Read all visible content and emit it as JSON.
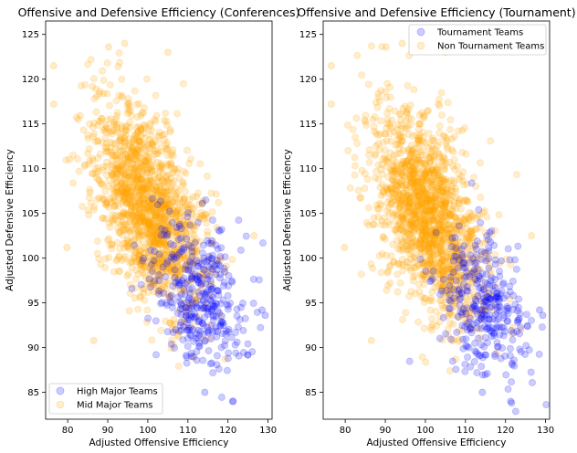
{
  "chart_data": [
    {
      "type": "scatter",
      "title": "Offensive and Defensive Efficiency (Conferences)",
      "xlabel": "Adjusted Offensive Efficiency",
      "ylabel": "Adjusted Defensive Efficiency",
      "xlim": [
        74.5,
        131.0
      ],
      "ylim": [
        82.0,
        126.5
      ],
      "xticks": [
        80,
        90,
        100,
        110,
        120,
        130
      ],
      "yticks": [
        85,
        90,
        95,
        100,
        105,
        110,
        115,
        120,
        125
      ],
      "grid": false,
      "legend": "lower-left",
      "series": [
        {
          "name": "High Major Teams",
          "color": "#0000ff",
          "alpha": 0.2,
          "summary": {
            "count": 380,
            "x_mean": 112.5,
            "x_sd": 6.0,
            "y_mean": 96.0,
            "y_sd": 4.3,
            "correlation": -0.35
          }
        },
        {
          "name": "Mid Major Teams",
          "color": "#ffa500",
          "alpha": 0.2,
          "summary": {
            "count": 1500,
            "x_mean": 100.0,
            "x_sd": 6.8,
            "y_mean": 105.5,
            "y_sd": 5.6,
            "correlation": -0.5
          }
        }
      ],
      "notable_points": [
        {
          "x": 76.5,
          "y": 121.5
        },
        {
          "x": 76.5,
          "y": 117.2
        },
        {
          "x": 94.2,
          "y": 124.0
        },
        {
          "x": 90.2,
          "y": 123.6
        },
        {
          "x": 105.0,
          "y": 123.0
        },
        {
          "x": 79.8,
          "y": 101.2
        },
        {
          "x": 86.5,
          "y": 90.8
        },
        {
          "x": 128.5,
          "y": 94.2
        },
        {
          "x": 129.3,
          "y": 93.6
        },
        {
          "x": 121.3,
          "y": 84.0
        },
        {
          "x": 114.2,
          "y": 85.0
        },
        {
          "x": 126.5,
          "y": 102.5
        }
      ]
    },
    {
      "type": "scatter",
      "title": "Offensive and Defensive Efficiency (Tournament)",
      "xlabel": "Adjusted Offensive Efficiency",
      "ylabel": "Adjusted Defensive Efficiency",
      "xlim": [
        74.5,
        131.0
      ],
      "ylim": [
        82.0,
        126.5
      ],
      "xticks": [
        80,
        90,
        100,
        110,
        120,
        130
      ],
      "yticks": [
        85,
        90,
        95,
        100,
        105,
        110,
        115,
        120,
        125
      ],
      "grid": false,
      "legend": "upper-right",
      "series": [
        {
          "name": "Tournament Teams",
          "color": "#0000ff",
          "alpha": 0.2,
          "summary": {
            "count": 330,
            "x_mean": 114.0,
            "x_sd": 5.5,
            "y_mean": 94.5,
            "y_sd": 3.8,
            "correlation": -0.3
          }
        },
        {
          "name": "Non Tournament Teams",
          "color": "#ffa500",
          "alpha": 0.2,
          "summary": {
            "count": 1550,
            "x_mean": 100.5,
            "x_sd": 6.8,
            "y_mean": 105.0,
            "y_sd": 5.6,
            "correlation": -0.5
          }
        }
      ],
      "notable_points": [
        {
          "x": 76.5,
          "y": 121.5
        },
        {
          "x": 76.5,
          "y": 117.2
        },
        {
          "x": 94.2,
          "y": 124.0
        },
        {
          "x": 90.2,
          "y": 123.6
        },
        {
          "x": 105.0,
          "y": 123.0
        },
        {
          "x": 79.8,
          "y": 101.2
        },
        {
          "x": 86.5,
          "y": 90.8
        },
        {
          "x": 128.5,
          "y": 94.2
        },
        {
          "x": 129.3,
          "y": 93.6
        },
        {
          "x": 121.3,
          "y": 84.0
        },
        {
          "x": 114.2,
          "y": 85.0
        },
        {
          "x": 126.5,
          "y": 102.5
        }
      ]
    }
  ]
}
